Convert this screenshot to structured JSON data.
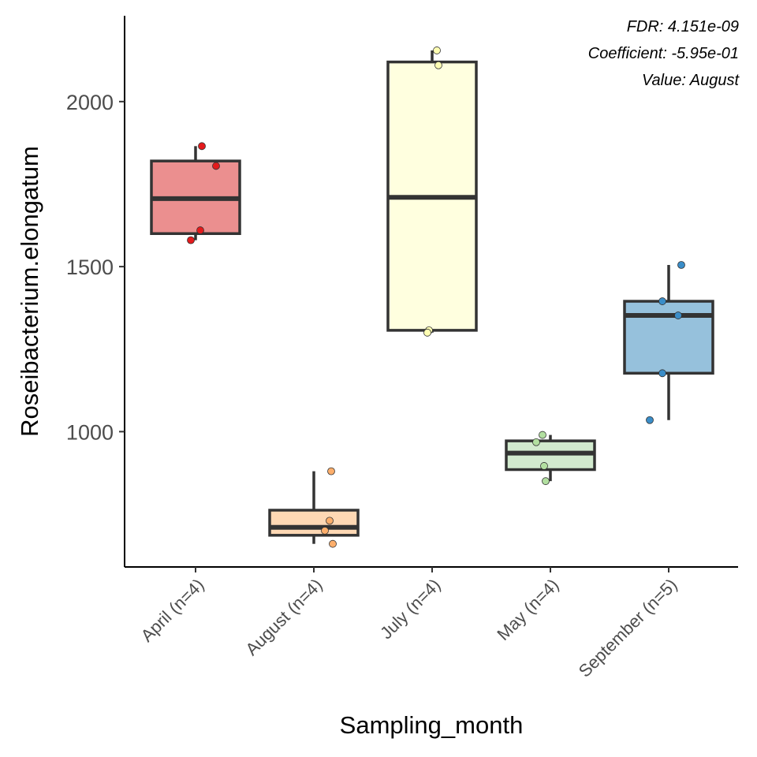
{
  "chart_data": {
    "type": "box",
    "xlabel": "Sampling_month",
    "ylabel": "Roseibacterium.elongatum",
    "ylim": [
      590,
      2260
    ],
    "yticks": [
      1000,
      1500,
      2000
    ],
    "grid": false,
    "annotations": [
      "FDR: 4.151e-09",
      "Coefficient: -5.95e-01",
      "Value: August"
    ],
    "categories": [
      "April (n=4)",
      "August (n=4)",
      "July (n=4)",
      "May (n=4)",
      "September (n=5)"
    ],
    "groups": [
      {
        "category": "April (n=4)",
        "fill": "#eb8f8f",
        "point_color": "#e41a1c",
        "box": {
          "whisker_low": 1580,
          "q1": 1600,
          "median": 1706,
          "q3": 1820,
          "whisker_high": 1865
        },
        "points": [
          1865,
          1805,
          1610,
          1580
        ]
      },
      {
        "category": "August (n=4)",
        "fill": "#fed8b4",
        "point_color": "#fdae6b",
        "box": {
          "whisker_low": 660,
          "q1": 686,
          "median": 710,
          "q3": 762,
          "whisker_high": 880
        },
        "points": [
          880,
          730,
          700,
          660
        ]
      },
      {
        "category": "July (n=4)",
        "fill": "#ffffdf",
        "point_color": "#ffffb3",
        "box": {
          "whisker_low": 1300,
          "q1": 1307,
          "median": 1710,
          "q3": 2120,
          "whisker_high": 2155
        },
        "points": [
          2155,
          2110,
          1307,
          1300
        ]
      },
      {
        "category": "May (n=4)",
        "fill": "#d2eace",
        "point_color": "#b2dfa0",
        "box": {
          "whisker_low": 850,
          "q1": 885,
          "median": 935,
          "q3": 972,
          "whisker_high": 990
        },
        "points": [
          990,
          968,
          896,
          850
        ]
      },
      {
        "category": "September (n=5)",
        "fill": "#96c1dc",
        "point_color": "#3a8dc8",
        "box": {
          "whisker_low": 1035,
          "q1": 1177,
          "median": 1352,
          "q3": 1395,
          "whisker_high": 1505
        },
        "points": [
          1505,
          1395,
          1352,
          1177,
          1035
        ]
      }
    ]
  }
}
